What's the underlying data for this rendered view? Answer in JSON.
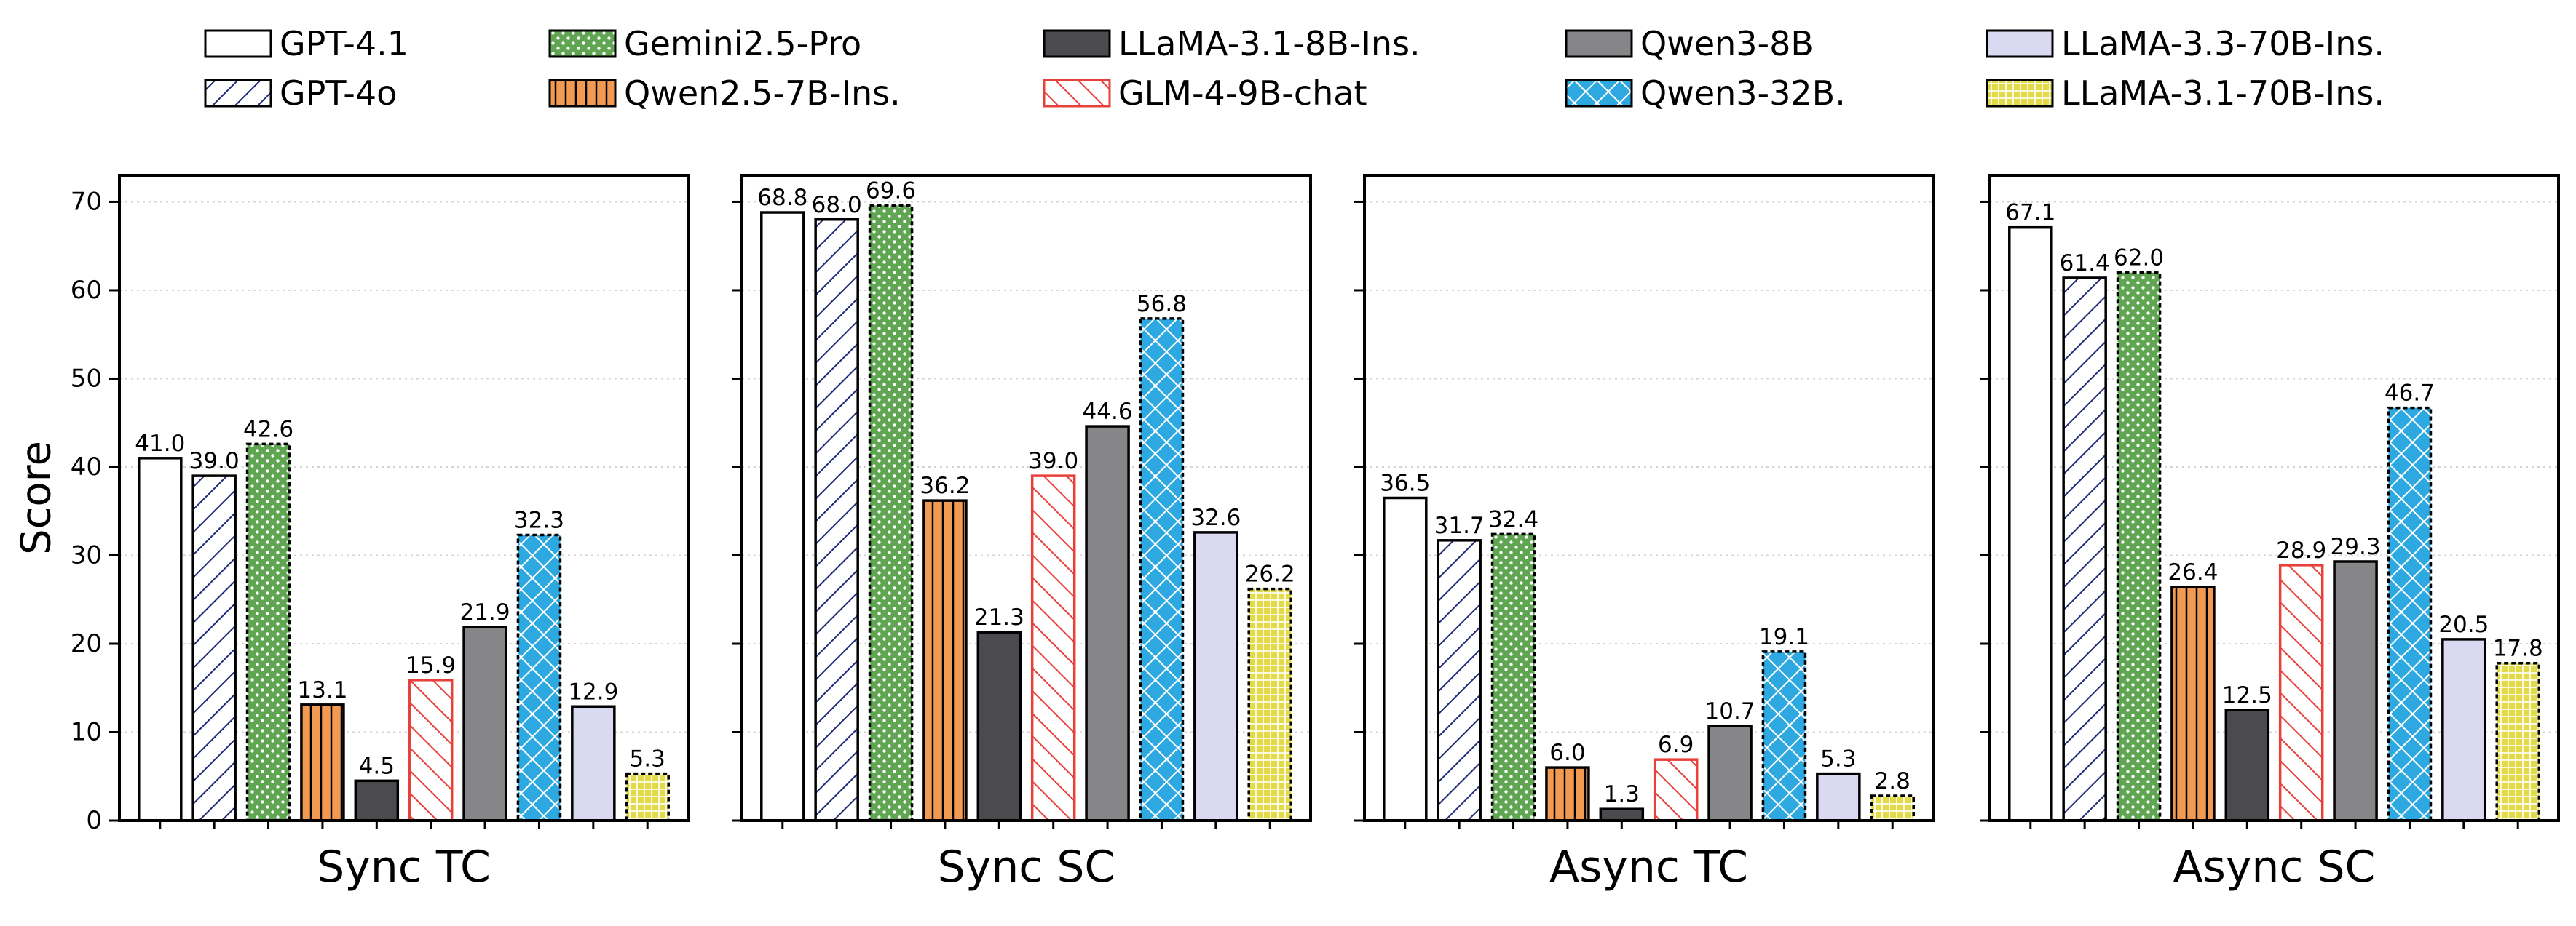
{
  "chart_data": {
    "type": "bar",
    "ylabel": "Score",
    "ylim": [
      0,
      73
    ],
    "yticks": [
      0,
      10,
      20,
      30,
      40,
      50,
      60,
      70
    ],
    "grid": "horizontal dotted",
    "legend": "top",
    "series": [
      {
        "name": "GPT-4.1",
        "color": "#ffffff",
        "hatch_color": "#000000",
        "pattern": "solid"
      },
      {
        "name": "GPT-4o",
        "color": "#ffffff",
        "hatch_color": "#1f2a7a",
        "pattern": "diagonal"
      },
      {
        "name": "Gemini2.5-Pro",
        "color": "#5fa552",
        "hatch_color": "#ffffff",
        "pattern": "dots"
      },
      {
        "name": "Qwen2.5-7B-Ins.",
        "color": "#f29a52",
        "hatch_color": "#000000",
        "pattern": "vertical"
      },
      {
        "name": "LLaMA-3.1-8B-Ins.",
        "color": "#4b4b4f",
        "hatch_color": "#4b4b4f",
        "pattern": "solid"
      },
      {
        "name": "GLM-4-9B-chat",
        "color": "#ffffff",
        "hatch_color": "#e8403b",
        "pattern": "backslash"
      },
      {
        "name": "Qwen3-8B",
        "color": "#868689",
        "hatch_color": "#868689",
        "pattern": "solid"
      },
      {
        "name": "Qwen3-32B.",
        "color": "#2ea8e0",
        "hatch_color": "#ffffff",
        "pattern": "cross"
      },
      {
        "name": "LLaMA-3.3-70B-Ins.",
        "color": "#d9d9f2",
        "hatch_color": "#d9d9f2",
        "pattern": "solid"
      },
      {
        "name": "LLaMA-3.1-70B-Ins.",
        "color": "#e3da4a",
        "hatch_color": "#ffffff",
        "pattern": "grid"
      }
    ],
    "panels": [
      {
        "title": "Sync TC",
        "values": [
          41.0,
          39.0,
          42.6,
          13.1,
          4.5,
          15.9,
          21.9,
          32.3,
          12.9,
          5.3
        ]
      },
      {
        "title": "Sync SC",
        "values": [
          68.8,
          68.0,
          69.6,
          36.2,
          21.3,
          39.0,
          44.6,
          56.8,
          32.6,
          26.2
        ]
      },
      {
        "title": "Async TC",
        "values": [
          36.5,
          31.7,
          32.4,
          6.0,
          1.3,
          6.9,
          10.7,
          19.1,
          5.3,
          2.8
        ]
      },
      {
        "title": "Async SC",
        "values": [
          67.1,
          61.4,
          62.0,
          26.4,
          12.5,
          28.9,
          29.3,
          46.7,
          20.5,
          17.8
        ]
      }
    ]
  }
}
